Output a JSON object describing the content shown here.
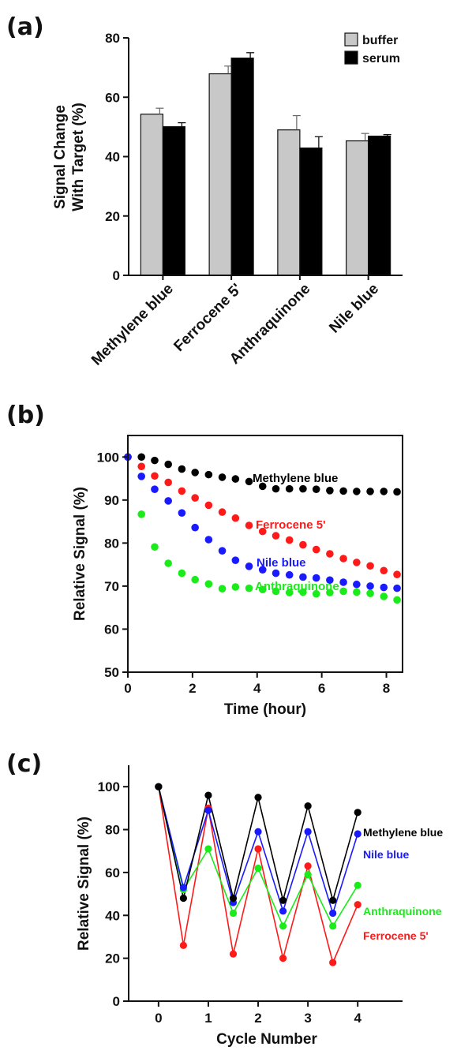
{
  "panels": [
    {
      "label": "(a)",
      "chart_data": {
        "type": "bar",
        "categories": [
          "Methylene blue",
          "Ferrocene 5'",
          "Anthraquinone",
          "Nile blue"
        ],
        "series": [
          {
            "name": "buffer",
            "color": "#c8c8c8",
            "values": [
              54.3,
              67.9,
              49.0,
              45.3
            ],
            "errors": [
              2.0,
              2.6,
              4.8,
              2.5
            ]
          },
          {
            "name": "serum",
            "color": "#000000",
            "values": [
              50.1,
              73.2,
              42.9,
              46.9
            ],
            "errors": [
              1.3,
              1.8,
              3.8,
              0.5
            ]
          }
        ],
        "ylabel": [
          "Signal Change",
          "With Target (%)"
        ],
        "xlabel": "",
        "ylim": [
          0,
          80
        ],
        "yticks": [
          "0",
          "20",
          "40",
          "60",
          "80"
        ],
        "legend": "top-right",
        "grid": false
      }
    },
    {
      "label": "(b)",
      "chart_data": {
        "type": "scatter",
        "xlabel": "Time (hour)",
        "ylabel": "Relative Signal (%)",
        "xlim": [
          0,
          8.5
        ],
        "ylim": [
          50,
          105
        ],
        "xticks": [
          "0",
          "2",
          "4",
          "6",
          "8"
        ],
        "yticks": [
          "50",
          "60",
          "70",
          "80",
          "90",
          "100"
        ],
        "grid": false,
        "x": [
          0.0,
          0.42,
          0.83,
          1.25,
          1.67,
          2.08,
          2.5,
          2.92,
          3.33,
          3.75,
          4.17,
          4.58,
          5.0,
          5.42,
          5.83,
          6.25,
          6.67,
          7.08,
          7.5,
          7.92,
          8.33
        ],
        "series": [
          {
            "name": "Methylene blue",
            "color": "#000000",
            "values": [
              100,
              100,
              99.2,
              98.3,
              97.2,
              96.4,
              95.9,
              95.3,
              94.9,
              94.3,
              93.2,
              92.6,
              92.6,
              92.6,
              92.5,
              92.2,
              92.1,
              92.0,
              92.0,
              92.0,
              91.9
            ]
          },
          {
            "name": "Ferrocene 5'",
            "color": "#ff1a1a",
            "values": [
              100,
              97.8,
              95.6,
              94.1,
              92.1,
              90.5,
              88.8,
              87.2,
              85.8,
              84.1,
              82.7,
              81.7,
              80.7,
              79.6,
              78.5,
              77.5,
              76.4,
              75.5,
              74.7,
              73.6,
              72.7
            ]
          },
          {
            "name": "Nile blue",
            "color": "#1a1aff",
            "values": [
              100,
              95.5,
              92.5,
              89.8,
              87.0,
              83.6,
              80.8,
              78.2,
              76.0,
              74.6,
              73.8,
              73.0,
              72.6,
              72.1,
              71.9,
              71.4,
              70.9,
              70.4,
              70.0,
              69.7,
              69.5
            ]
          },
          {
            "name": "Anthraquinone",
            "color": "#1aeb1a",
            "values": [
              null,
              86.7,
              79.1,
              75.3,
              73.0,
              71.5,
              70.5,
              69.4,
              69.8,
              69.5,
              69.2,
              68.8,
              68.5,
              68.6,
              68.2,
              68.5,
              68.8,
              68.6,
              68.3,
              67.6,
              66.8
            ]
          }
        ]
      }
    },
    {
      "label": "(c)",
      "chart_data": {
        "type": "line",
        "xlabel": "Cycle Number",
        "ylabel": "Relative Signal (%)",
        "xlim": [
          -0.6,
          4.9
        ],
        "ylim": [
          0,
          110
        ],
        "xticks": [
          "0",
          "1",
          "2",
          "3",
          "4"
        ],
        "yticks": [
          "0",
          "20",
          "40",
          "60",
          "80",
          "100"
        ],
        "grid": false,
        "x": [
          0,
          0.5,
          1,
          1.5,
          2,
          2.5,
          3,
          3.5,
          4
        ],
        "series": [
          {
            "name": "Methylene blue",
            "color": "#000000",
            "values": [
              100,
              48,
              96,
              48,
              95,
              47,
              91,
              47,
              88
            ]
          },
          {
            "name": "Nile blue",
            "color": "#1a1aff",
            "values": [
              100,
              53,
              89,
              46,
              79,
              42,
              79,
              41,
              78
            ]
          },
          {
            "name": "Anthraquinone",
            "color": "#1aeb1a",
            "values": [
              100,
              52,
              71,
              41,
              62,
              35,
              59,
              35,
              54
            ]
          },
          {
            "name": "Ferrocene 5'",
            "color": "#ff1a1a",
            "values": [
              100,
              26,
              90,
              22,
              71,
              20,
              63,
              18,
              45
            ]
          }
        ]
      }
    }
  ]
}
